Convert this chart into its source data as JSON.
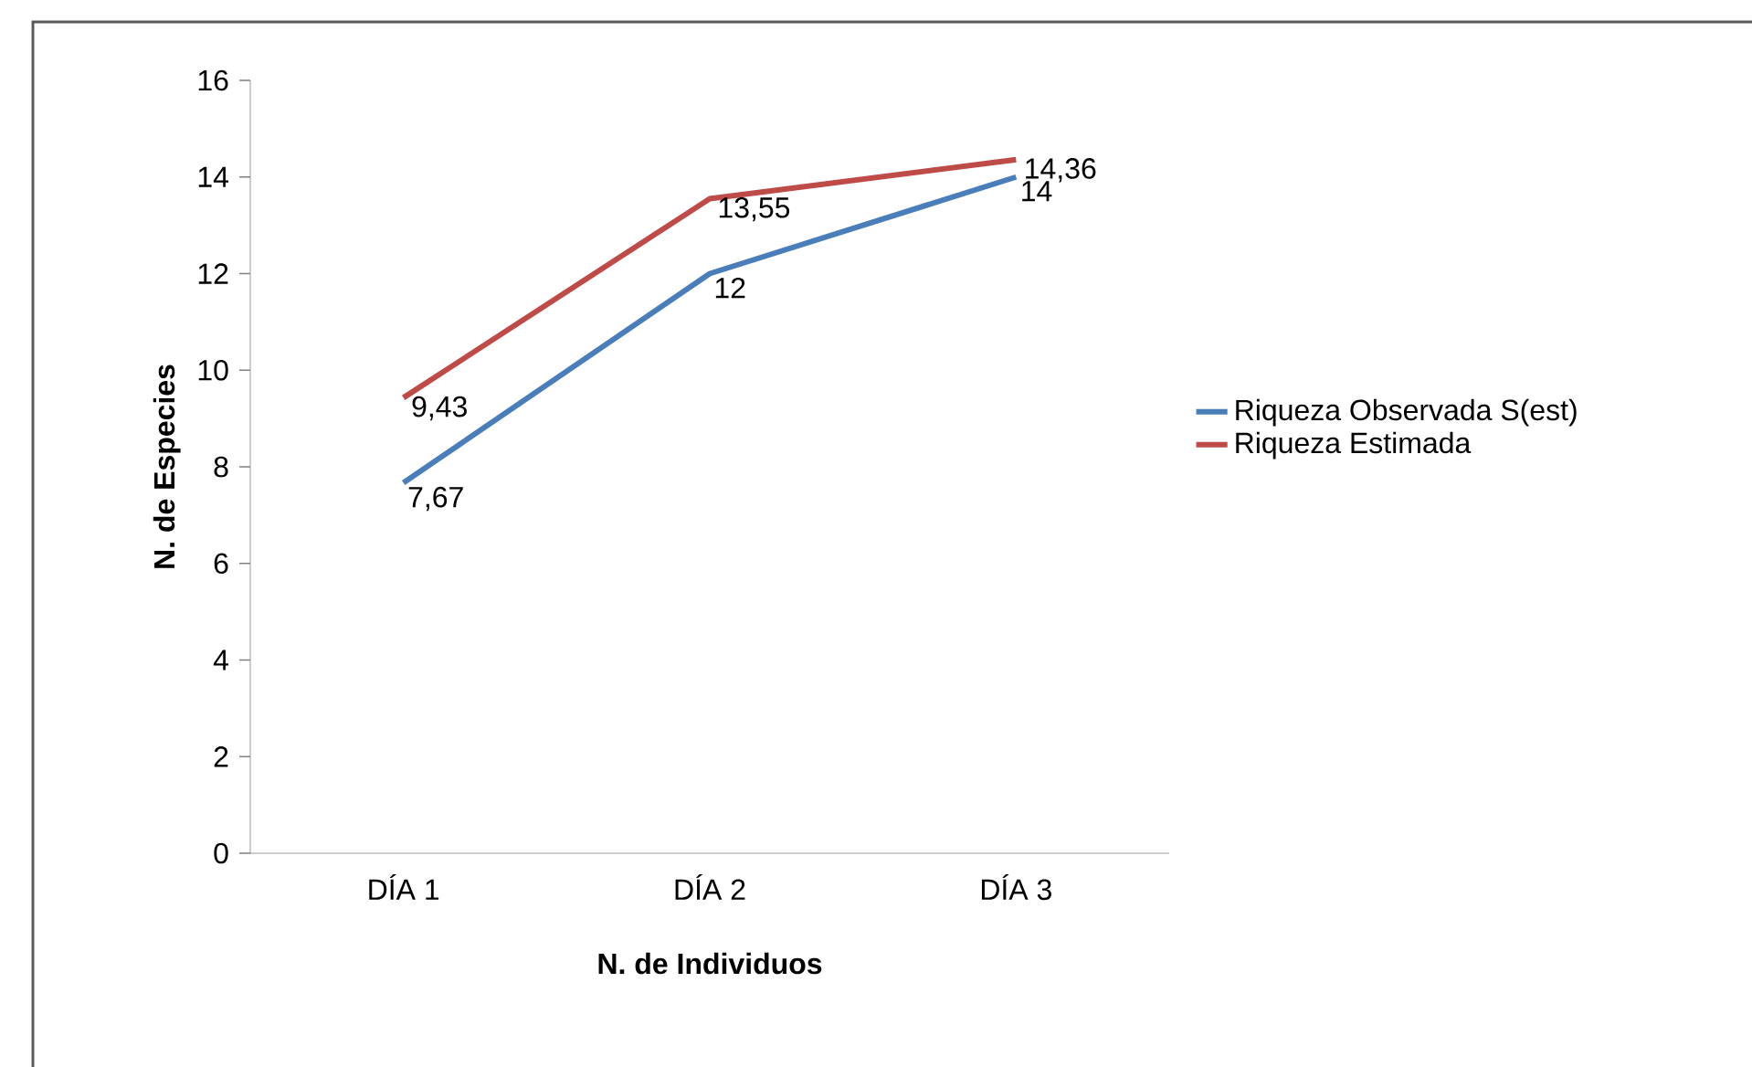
{
  "chart_data": {
    "type": "line",
    "xlabel": "N. de Individuos",
    "ylabel": "N. de Especies",
    "categories": [
      "DÍA 1",
      "DÍA 2",
      "DÍA 3"
    ],
    "series": [
      {
        "name": "Riqueza Observada S(est)",
        "color": "#4a7ebb",
        "values": [
          7.67,
          12,
          14
        ],
        "value_labels": [
          "7,67",
          "12",
          "14"
        ]
      },
      {
        "name": "Riqueza Estimada",
        "color": "#be4b48",
        "values": [
          9.43,
          13.55,
          14.36
        ],
        "value_labels": [
          "9,43",
          "13,55",
          "14,36"
        ]
      }
    ],
    "ylim": [
      0,
      16
    ],
    "yticks": [
      0,
      2,
      4,
      6,
      8,
      10,
      12,
      14,
      16
    ],
    "grid": false,
    "legend": "right",
    "marker": "none",
    "line_style": "solid"
  }
}
